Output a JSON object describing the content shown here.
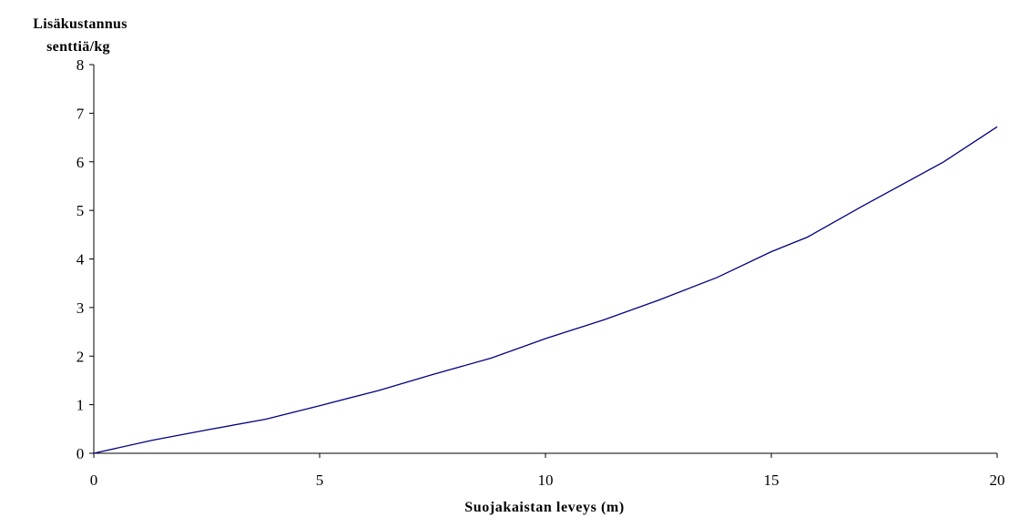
{
  "chart_data": {
    "type": "line",
    "title": "",
    "ylabel_lines": [
      "Lisäkustannus",
      "senttiä/kg"
    ],
    "xlabel": "Suojakaistan leveys (m)",
    "xlim": [
      0,
      20
    ],
    "ylim": [
      0,
      8
    ],
    "x_ticks": [
      0,
      5,
      10,
      15,
      20
    ],
    "y_ticks": [
      0,
      1,
      2,
      3,
      4,
      5,
      6,
      7,
      8
    ],
    "grid": false,
    "legend": "none",
    "line_color": "#000080",
    "series": [
      {
        "x": [
          0,
          1.3,
          2.5,
          3.8,
          5,
          6.3,
          7.5,
          8.8,
          10,
          11.3,
          12.5,
          13.8,
          15,
          15.8,
          17,
          18.8,
          20
        ],
        "y": [
          0,
          0.27,
          0.48,
          0.7,
          0.98,
          1.29,
          1.62,
          1.96,
          2.36,
          2.75,
          3.15,
          3.62,
          4.15,
          4.45,
          5.08,
          5.99,
          6.72
        ]
      }
    ]
  }
}
